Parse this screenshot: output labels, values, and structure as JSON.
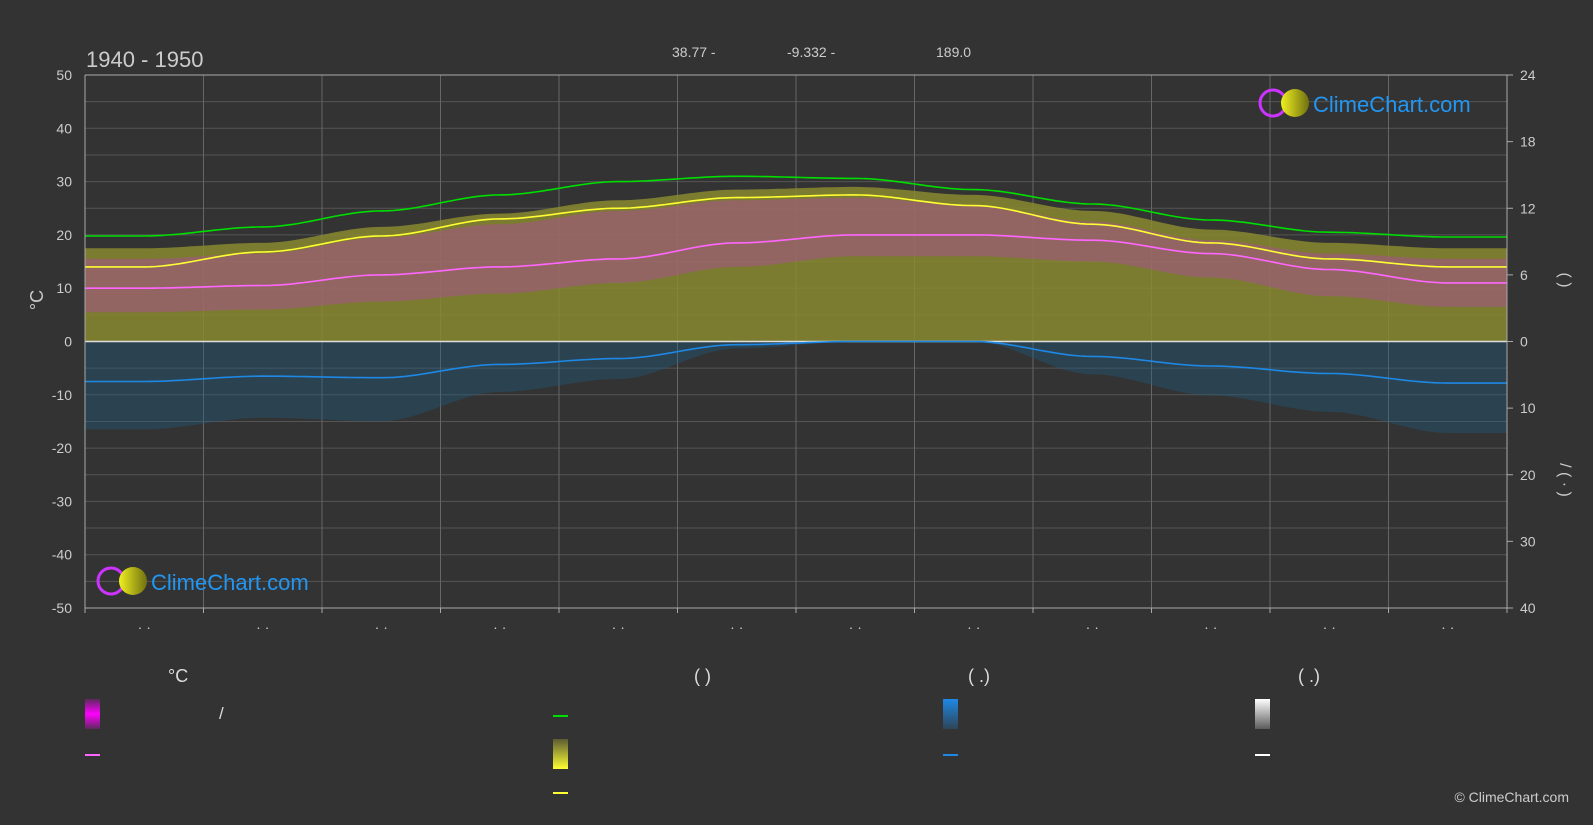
{
  "header": {
    "period": "1940 - 1950",
    "lat": "38.77 -",
    "lon": "-9.332 -",
    "elev": "189.0"
  },
  "branding": {
    "logo_text": "ClimeChart.com",
    "copyright": "© ClimeChart.com"
  },
  "chart_data": {
    "type": "area",
    "left_axis": {
      "label": "°C",
      "ticks": [
        50,
        40,
        30,
        20,
        10,
        0,
        -10,
        -20,
        -30,
        -40,
        -50
      ],
      "range": [
        -50,
        50
      ]
    },
    "right_axis": {
      "upper_ticks": [
        24,
        18,
        12,
        6,
        0
      ],
      "lower_ticks": [
        10,
        20,
        30,
        40
      ],
      "upper_label": "(      )",
      "lower_label": "/      (   ·   )"
    },
    "month_ticks": [
      "· ·",
      "· ·",
      "· ·",
      "· ·",
      "· ·",
      "· ·",
      "· ·",
      "· ·",
      "· ·",
      "· ·",
      "· ·",
      "· ·"
    ],
    "grid": true,
    "months_x": [
      0.5,
      1.5,
      2.5,
      3.5,
      4.5,
      5.5,
      6.5,
      7.5,
      8.5,
      9.5,
      10.5,
      11.5
    ],
    "series": [
      {
        "name": "daylight",
        "color": "#00dd00",
        "values": [
          19.8,
          21.5,
          24.5,
          27.5,
          30.0,
          31.0,
          30.6,
          28.5,
          25.8,
          22.8,
          20.5,
          19.6
        ]
      },
      {
        "name": "sunshine",
        "color": "#ffff33",
        "values": [
          14.0,
          16.8,
          19.8,
          23.0,
          25.0,
          27.0,
          27.5,
          25.5,
          22.0,
          18.5,
          15.5,
          14.0
        ]
      },
      {
        "name": "mean-temp",
        "color": "#ff66ff",
        "values": [
          10.0,
          10.5,
          12.5,
          14.0,
          15.5,
          18.5,
          20.0,
          20.0,
          19.0,
          16.5,
          13.5,
          11.0
        ]
      },
      {
        "name": "precipitation",
        "color": "#1e88e5",
        "values": [
          -7.5,
          -6.5,
          -6.8,
          -4.3,
          -3.2,
          -0.6,
          0.0,
          0.0,
          -2.8,
          -4.6,
          -6.0,
          -7.8
        ]
      }
    ],
    "temp_band": {
      "upper": [
        17.5,
        18.5,
        21.5,
        24.0,
        26.5,
        28.5,
        29.0,
        27.5,
        24.5,
        21.0,
        18.5,
        17.5
      ],
      "lower": [
        3.5,
        4.0,
        5.5,
        7.0,
        9.0,
        12.0,
        14.0,
        14.0,
        13.0,
        10.0,
        6.5,
        4.5
      ]
    }
  },
  "legend": {
    "col1": {
      "title": "°C",
      "items": [
        "/",
        ""
      ]
    },
    "col2": {
      "title": "(           )",
      "items": [
        "",
        "",
        ""
      ]
    },
    "col3": {
      "title": "(   .)",
      "items": [
        "",
        ""
      ]
    },
    "col4": {
      "title": "(   .)",
      "items": [
        "",
        ""
      ]
    }
  },
  "colors": {
    "background": "#333333",
    "grid": "#555555",
    "axis_text": "#cccccc",
    "magenta": "#ff00ff",
    "yellow": "#ffff33",
    "green": "#00dd00",
    "blue": "#1e88e5",
    "white": "#ffffff"
  }
}
